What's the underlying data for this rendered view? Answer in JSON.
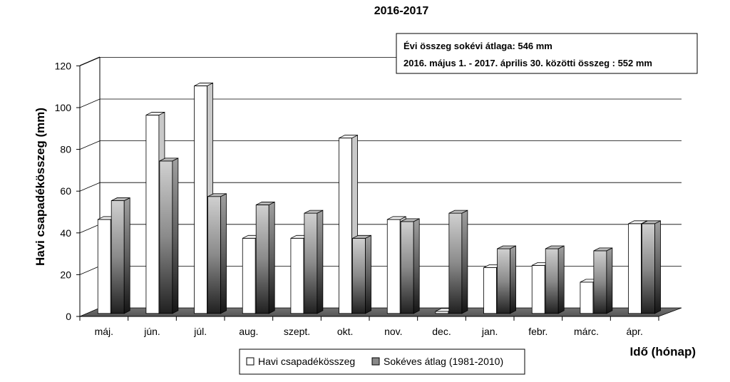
{
  "chart_data": {
    "type": "bar",
    "title": "2016-2017",
    "ylabel": "Havi csapadékösszeg  (mm)",
    "xlabel": "Idő (hónap)",
    "ylim": [
      0,
      120
    ],
    "yticks": [
      0,
      20,
      40,
      60,
      80,
      100,
      120
    ],
    "categories": [
      "máj.",
      "jún.",
      "júl.",
      "aug.",
      "szept.",
      "okt.",
      "nov.",
      "dec.",
      "jan.",
      "febr.",
      "márc.",
      "ápr."
    ],
    "series": [
      {
        "name": "Havi csapadékösszeg",
        "values": [
          45,
          95,
          109,
          36,
          36,
          84,
          45,
          1,
          22,
          23,
          15,
          43
        ],
        "color": "#ffffff"
      },
      {
        "name": "Sokéves átlag (1981-2010)",
        "values": [
          54,
          73,
          56,
          52,
          48,
          36,
          44,
          48,
          31,
          31,
          30,
          43
        ],
        "color": "#888888"
      }
    ],
    "annotations": [
      "Évi összeg sokévi átlaga:  546 mm",
      "2016. május 1. - 2017. április 30. közötti összeg : 552 mm"
    ],
    "grid": true,
    "legend_position": "bottom",
    "style": "3d"
  }
}
